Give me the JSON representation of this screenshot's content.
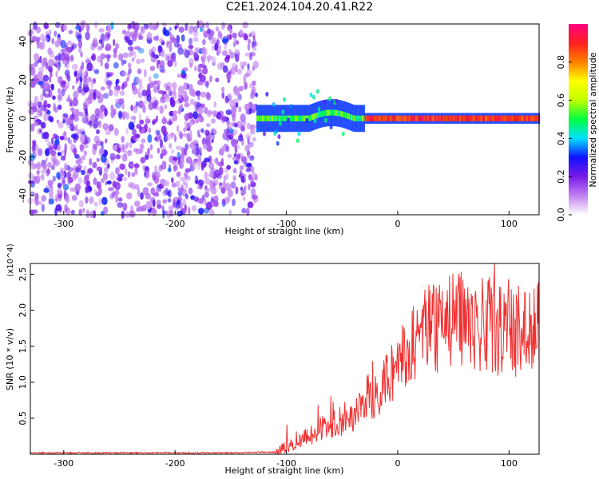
{
  "title": "C2E1.2024.104.20.41.R22",
  "chart_data": [
    {
      "type": "heatmap",
      "xlabel": "Height of straight line (km)",
      "ylabel": "Frequency (Hz)",
      "xlim": [
        -330,
        127
      ],
      "ylim": [
        -50,
        49
      ],
      "xticks": [
        -300,
        -200,
        -100,
        0,
        100
      ],
      "yticks": [
        -40,
        -20,
        0,
        20,
        40
      ],
      "colorbar": {
        "label": "Normalized spectral amplitude",
        "range": [
          0,
          1
        ],
        "ticks": [
          "0.0",
          "0.2",
          "0.4",
          "0.6",
          "0.8"
        ],
        "colors": [
          "#ffffff",
          "#c080f0",
          "#7a1ae8",
          "#1010ff",
          "#00e0ff",
          "#00ff40",
          "#c0ff00",
          "#ffff00",
          "#ff8000",
          "#ff2020",
          "#ff0080"
        ]
      },
      "regions": [
        {
          "name": "noise",
          "x": [
            -330,
            -127
          ],
          "y": [
            -50,
            49
          ],
          "amplitude": [
            0.0,
            0.25
          ]
        },
        {
          "name": "signal",
          "x": [
            -127,
            127
          ],
          "y_center": 0,
          "y_halfwidth": [
            4,
            10
          ],
          "amplitude": [
            0.3,
            1.0
          ]
        }
      ]
    },
    {
      "type": "line",
      "xlabel": "Height of straight line (km)",
      "ylabel": "SNR (10 * v/v)",
      "yscale_note": "(x10^4)",
      "xlim": [
        -330,
        127
      ],
      "ylim": [
        0,
        2.65
      ],
      "xticks": [
        -300,
        -200,
        -100,
        0,
        100
      ],
      "yticks": [
        "0.5",
        "1.0",
        "1.5",
        "2.0",
        "2.5"
      ],
      "color": "#f03030",
      "series": [
        {
          "x": [
            -330,
            -250,
            -150,
            -110,
            -100,
            -90,
            -80,
            -70,
            -60,
            -50,
            -40,
            -30,
            -20,
            -10,
            0,
            10,
            20,
            30,
            40,
            50,
            60,
            70,
            80,
            90,
            100,
            110,
            127
          ],
          "y": [
            0.02,
            0.02,
            0.02,
            0.03,
            0.1,
            0.18,
            0.25,
            0.35,
            0.4,
            0.45,
            0.55,
            0.75,
            0.85,
            1.05,
            1.25,
            1.45,
            1.65,
            1.75,
            1.8,
            1.85,
            1.88,
            1.82,
            1.8,
            1.75,
            1.72,
            1.7,
            1.75
          ]
        }
      ]
    }
  ]
}
